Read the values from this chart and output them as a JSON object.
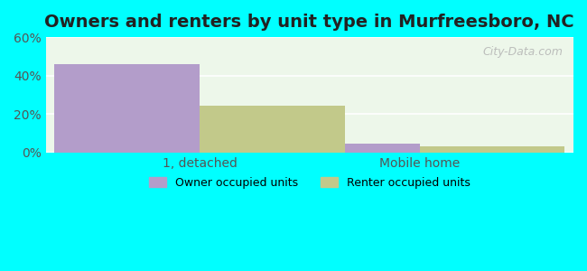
{
  "title": "Owners and renters by unit type in Murfreesboro, NC",
  "categories": [
    "1, detached",
    "Mobile home"
  ],
  "owner_values": [
    46.0,
    4.5
  ],
  "renter_values": [
    24.5,
    3.0
  ],
  "owner_color": "#b39dca",
  "renter_color": "#c2c98a",
  "ylim": [
    0,
    60
  ],
  "yticks": [
    0,
    20,
    40,
    60
  ],
  "ytick_labels": [
    "0%",
    "20%",
    "40%",
    "60%"
  ],
  "bar_width": 0.33,
  "outer_color": "#00ffff",
  "plot_bg_color": "#edf7ea",
  "watermark": "City-Data.com",
  "legend_labels": [
    "Owner occupied units",
    "Renter occupied units"
  ],
  "title_fontsize": 14,
  "tick_fontsize": 10,
  "x_positions": [
    0.25,
    0.75
  ],
  "xlim": [
    -0.1,
    1.1
  ]
}
